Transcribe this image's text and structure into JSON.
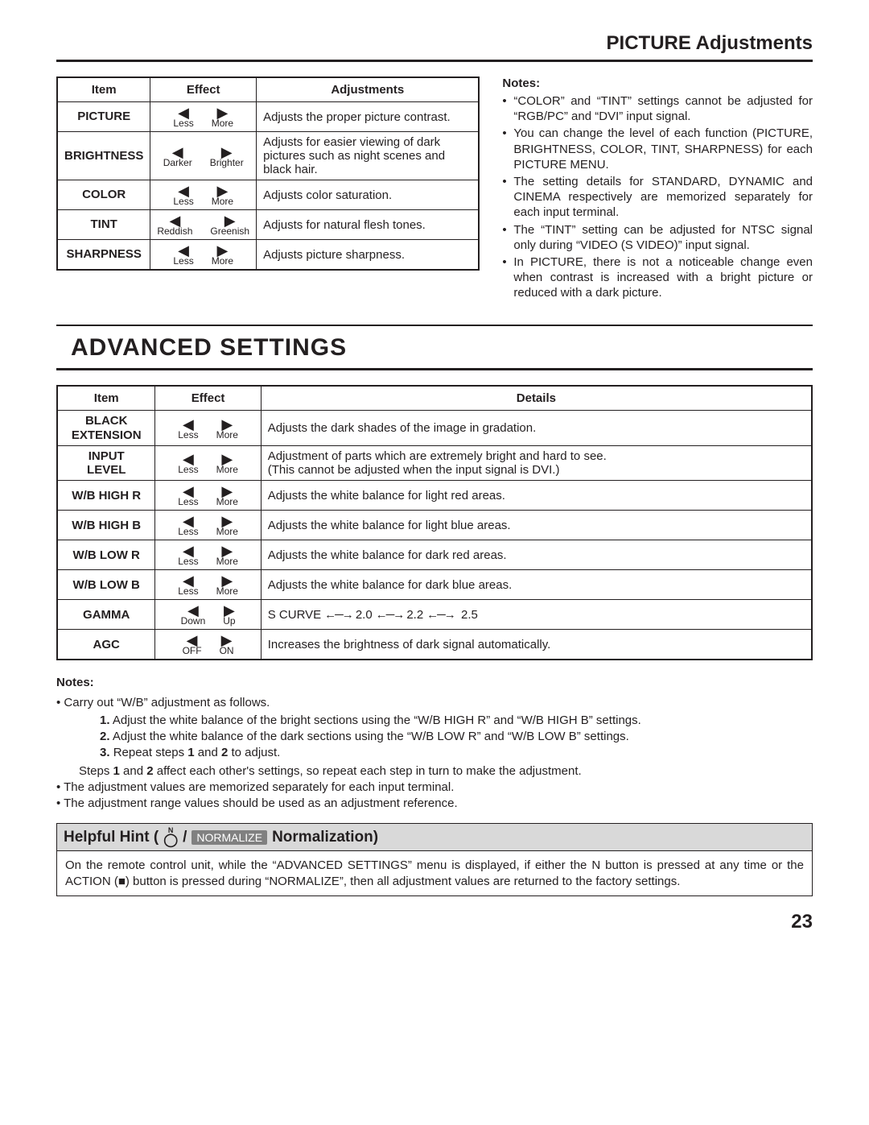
{
  "page_title": "PICTURE Adjustments",
  "picture_table": {
    "headers": [
      "Item",
      "Effect",
      "Adjustments"
    ],
    "rows": [
      {
        "item": "PICTURE",
        "left": "Less",
        "right": "More",
        "adj": "Adjusts the proper picture contrast."
      },
      {
        "item": "BRIGHTNESS",
        "left": "Darker",
        "right": "Brighter",
        "adj": "Adjusts for easier viewing of dark pictures such as night scenes and black hair."
      },
      {
        "item": "COLOR",
        "left": "Less",
        "right": "More",
        "adj": "Adjusts color saturation."
      },
      {
        "item": "TINT",
        "left": "Reddish",
        "right": "Greenish",
        "adj": "Adjusts for natural flesh tones."
      },
      {
        "item": "SHARPNESS",
        "left": "Less",
        "right": "More",
        "adj": "Adjusts picture sharpness."
      }
    ]
  },
  "picture_notes": {
    "heading": "Notes:",
    "items": [
      "“COLOR” and “TINT” settings cannot be adjusted for “RGB/PC” and “DVI” input signal.",
      "You can change the level of each function (PICTURE, BRIGHTNESS, COLOR, TINT, SHARPNESS) for each PICTURE MENU.",
      "The setting details for STANDARD, DYNAMIC and CINEMA respectively are memorized separately for each input terminal.",
      "The “TINT” setting can be adjusted for NTSC signal only during “VIDEO (S VIDEO)” input signal.",
      "In PICTURE, there is not a noticeable change even when contrast is increased with a bright picture or reduced with a dark picture."
    ]
  },
  "advanced_title": "ADVANCED SETTINGS",
  "advanced_table": {
    "headers": [
      "Item",
      "Effect",
      "Details"
    ],
    "rows": [
      {
        "item": "BLACK\nEXTENSION",
        "left": "Less",
        "right": "More",
        "det": "Adjusts the dark shades of the image in gradation."
      },
      {
        "item": "INPUT\nLEVEL",
        "left": "Less",
        "right": "More",
        "det": "Adjustment of parts which are extremely bright and hard to see.\n(This cannot be adjusted when the input signal is DVI.)"
      },
      {
        "item": "W/B HIGH R",
        "left": "Less",
        "right": "More",
        "det": "Adjusts the white balance for light red areas."
      },
      {
        "item": "W/B HIGH B",
        "left": "Less",
        "right": "More",
        "det": "Adjusts the white balance for light blue areas."
      },
      {
        "item": "W/B LOW R",
        "left": "Less",
        "right": "More",
        "det": "Adjusts the white balance for dark red areas."
      },
      {
        "item": "W/B LOW B",
        "left": "Less",
        "right": "More",
        "det": "Adjusts the white balance for dark blue areas."
      },
      {
        "item": "GAMMA",
        "left": "Down",
        "right": "Up",
        "det": "gamma"
      },
      {
        "item": "AGC",
        "left": "OFF",
        "right": "ON",
        "det": "Increases the brightness of dark signal automatically."
      }
    ],
    "gamma_labels": [
      "S CURVE",
      "2.0",
      "2.2",
      "2.5"
    ]
  },
  "advanced_notes": {
    "heading": "Notes:",
    "lead": "Carry out “W/B” adjustment as follows.",
    "ordered": [
      "Adjust the white balance of the bright sections using the “W/B HIGH R” and “W/B HIGH B” settings.",
      "Adjust the white balance of the dark sections using the “W/B LOW R” and “W/B LOW B” settings.",
      "Repeat steps 1 and 2 to adjust."
    ],
    "ordered_tail": "Steps 1 and 2 affect each other's settings, so repeat each step in turn to make the adjustment.",
    "extra": [
      "The adjustment values are memorized separately for each input terminal.",
      "The adjustment range values should be used as an adjustment reference."
    ]
  },
  "hint": {
    "title_prefix": "Helpful Hint (",
    "n_label": "N",
    "normalize_badge": "NORMALIZE",
    "title_suffix": "Normalization)",
    "body": "On the remote control unit, while the “ADVANCED SETTINGS” menu is displayed, if either the N button is pressed at any time or the ACTION (■) button is pressed during “NORMALIZE”, then all adjustment values are returned to the factory settings."
  },
  "page_number": "23",
  "triangles": {
    "left": "◀",
    "right": "▶"
  },
  "colors": {
    "text": "#231f20",
    "hint_bg": "#d9d9d9",
    "badge_bg": "#808080"
  }
}
